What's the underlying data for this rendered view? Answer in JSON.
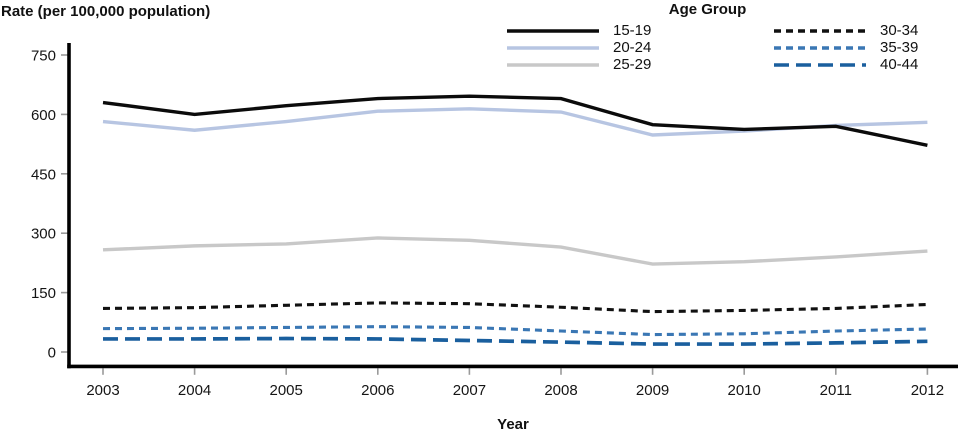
{
  "figure": {
    "y_axis_title": "Rate (per 100,000 population)",
    "x_axis_title": "Year",
    "legend_title": "Age Group"
  },
  "colors": {
    "axis": "#000000",
    "tick": "#9a9a9a",
    "text": "#151515"
  },
  "chart_data": {
    "type": "line",
    "title": "",
    "xlabel": "Year",
    "ylabel": "Rate (per 100,000 population)",
    "x": [
      2003,
      2004,
      2005,
      2006,
      2007,
      2008,
      2009,
      2010,
      2011,
      2012
    ],
    "ylim": [
      0,
      750
    ],
    "yticks": [
      0,
      150,
      300,
      450,
      600,
      750
    ],
    "grid": false,
    "legend_title": "Age Group",
    "legend_position": "top-center, two columns",
    "series": [
      {
        "name": "15-19",
        "color": "#0b0b0b",
        "line_style": "solid",
        "values": [
          630,
          600,
          622,
          640,
          646,
          640,
          574,
          562,
          570,
          522
        ]
      },
      {
        "name": "20-24",
        "color": "#b7c5e2",
        "line_style": "solid",
        "values": [
          582,
          560,
          582,
          608,
          614,
          606,
          548,
          558,
          572,
          580
        ]
      },
      {
        "name": "25-29",
        "color": "#c8c8c8",
        "line_style": "solid",
        "values": [
          258,
          268,
          273,
          288,
          282,
          265,
          222,
          228,
          240,
          255
        ]
      },
      {
        "name": "30-34",
        "color": "#111111",
        "line_style": "dashed",
        "values": [
          110,
          112,
          118,
          124,
          122,
          113,
          102,
          105,
          110,
          120
        ]
      },
      {
        "name": "35-39",
        "color": "#3a77b4",
        "line_style": "dashed",
        "values": [
          59,
          60,
          62,
          64,
          62,
          53,
          44,
          46,
          53,
          58
        ]
      },
      {
        "name": "40-44",
        "color": "#1a5f9e",
        "line_style": "long-dash",
        "values": [
          33,
          33,
          34,
          33,
          29,
          25,
          20,
          20,
          23,
          27
        ]
      }
    ]
  }
}
